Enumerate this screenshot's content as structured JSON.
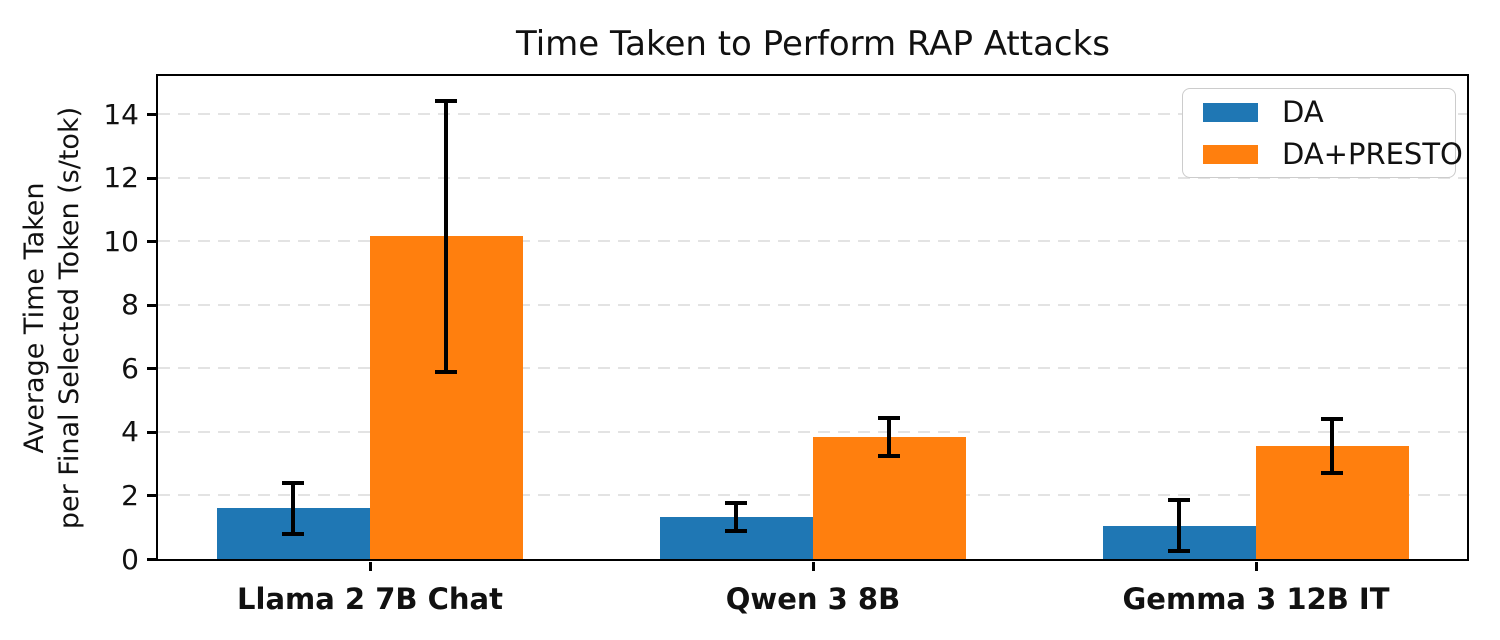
{
  "chart_data": {
    "type": "bar",
    "title": "Time Taken to Perform RAP Attacks",
    "ylabel": "Average Time Taken\nper Final Selected Token (s/tok)",
    "xlabel": "",
    "categories": [
      "Llama 2 7B Chat",
      "Qwen 3 8B",
      "Gemma 3 12B IT"
    ],
    "series": [
      {
        "name": "DA",
        "color": "#1f77b4",
        "values": [
          1.6,
          1.32,
          1.05
        ],
        "errors": [
          0.8,
          0.43,
          0.8
        ]
      },
      {
        "name": "DA+PRESTO",
        "color": "#ff7f0e",
        "values": [
          10.15,
          3.85,
          3.55
        ],
        "errors": [
          4.25,
          0.6,
          0.85
        ]
      }
    ],
    "ylim": [
      0,
      15.2
    ],
    "yticks": [
      0,
      2,
      4,
      6,
      8,
      10,
      12,
      14
    ],
    "grid": "horizontal-dashed",
    "error_bars": true,
    "legend_position": "upper-right"
  },
  "colors": {
    "grid": "#e3e3e3",
    "spine": "#000000",
    "text": "#111111",
    "legend_border": "#cccccc",
    "background": "#ffffff"
  }
}
